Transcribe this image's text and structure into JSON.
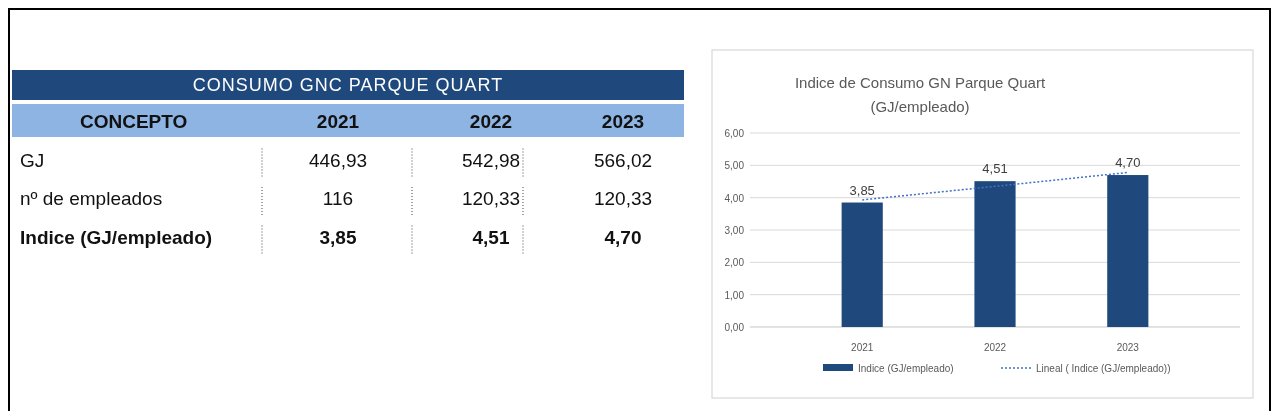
{
  "chart_data": [
    {
      "type": "other",
      "title": "CONSUMO GNC PARQUE QUART",
      "annotations": [
        "CONCEPTO",
        "2021",
        "2022",
        "2023",
        "GJ",
        "446,93",
        "542,98",
        "566,02",
        "nº de empleados",
        "116",
        "120,33",
        "120,33",
        "Indice (GJ/empleado)",
        "3,85",
        "4,51",
        "4,70"
      ]
    },
    {
      "type": "bar",
      "title": "Indice de Consumo GN Parque Quart (GJ/empleado)",
      "categories": [
        "2021",
        "2022",
        "2023"
      ],
      "series": [
        {
          "name": "Indice (GJ/empleado)",
          "color": "#1f497d",
          "values": [
            3.85,
            4.51,
            4.7
          ],
          "value_labels": [
            "3,85",
            "4,51",
            "4,70"
          ]
        },
        {
          "name": "Lineal ( Indice (GJ/empleado))",
          "type": "line",
          "color": "#4472c4",
          "line_style": "dotted",
          "values": [
            3.93,
            4.35,
            4.78
          ]
        }
      ],
      "ylim": [
        0,
        6
      ],
      "yticks": [
        {
          "value": 0,
          "label": "0,00"
        },
        {
          "value": 1,
          "label": "1,00"
        },
        {
          "value": 2,
          "label": "2,00"
        },
        {
          "value": 3,
          "label": "3,00"
        },
        {
          "value": 4,
          "label": "4,00"
        },
        {
          "value": 5,
          "label": "5,00"
        },
        {
          "value": 6,
          "label": "6,00"
        }
      ],
      "grid": "y",
      "legend": "bottom"
    }
  ]
}
